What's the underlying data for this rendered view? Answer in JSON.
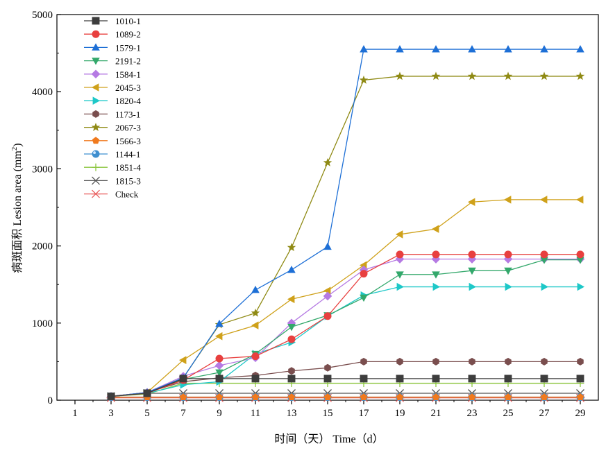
{
  "chart_data": {
    "type": "line",
    "xlabel": "时间（天） Time（d）",
    "ylabel": "病斑面积 Lesion area (mm2)",
    "ylabel_main": "病斑面积 Lesion area (mm",
    "ylabel_sup": "2",
    "ylabel_close": ")",
    "xlim": [
      0,
      30
    ],
    "ylim": [
      0,
      5000
    ],
    "xticks": [
      1,
      3,
      5,
      7,
      9,
      11,
      13,
      15,
      17,
      19,
      21,
      23,
      25,
      27,
      29
    ],
    "yticks": [
      0,
      1000,
      2000,
      3000,
      4000,
      5000
    ],
    "grid": false,
    "legend_position": "top-left",
    "x": [
      3,
      5,
      7,
      9,
      11,
      13,
      15,
      17,
      19,
      21,
      23,
      25,
      27,
      29
    ],
    "series": [
      {
        "name": "1010-1",
        "color": "#3d3d3d",
        "marker": "square",
        "values": [
          50,
          90,
          280,
          280,
          280,
          280,
          280,
          280,
          280,
          280,
          280,
          280,
          280,
          280
        ]
      },
      {
        "name": "1089-2",
        "color": "#e8403f",
        "marker": "circle",
        "values": [
          50,
          90,
          260,
          540,
          570,
          790,
          1090,
          1640,
          1890,
          1890,
          1890,
          1890,
          1890,
          1890
        ]
      },
      {
        "name": "1579-1",
        "color": "#1d6fd6",
        "marker": "triangle-up",
        "values": [
          50,
          100,
          290,
          990,
          1430,
          1690,
          1990,
          4550,
          4550,
          4550,
          4550,
          4550,
          4550,
          4550
        ]
      },
      {
        "name": "2191-2",
        "color": "#33a86b",
        "marker": "triangle-down",
        "values": [
          50,
          90,
          270,
          360,
          600,
          950,
          1100,
          1330,
          1630,
          1630,
          1680,
          1680,
          1820,
          1820
        ]
      },
      {
        "name": "1584-1",
        "color": "#b57ae3",
        "marker": "diamond",
        "values": [
          50,
          100,
          310,
          450,
          550,
          1000,
          1350,
          1690,
          1830,
          1830,
          1830,
          1830,
          1830,
          1830
        ]
      },
      {
        "name": "2045-3",
        "color": "#cfa11a",
        "marker": "triangle-left",
        "values": [
          50,
          100,
          520,
          830,
          970,
          1310,
          1420,
          1750,
          2150,
          2220,
          2570,
          2600,
          2600,
          2600
        ]
      },
      {
        "name": "1820-4",
        "color": "#1ec8c8",
        "marker": "triangle-right",
        "values": [
          50,
          90,
          200,
          240,
          600,
          750,
          1090,
          1360,
          1470,
          1470,
          1470,
          1470,
          1470,
          1470
        ]
      },
      {
        "name": "1173-1",
        "color": "#7a4e4e",
        "marker": "hexagon",
        "values": [
          50,
          100,
          240,
          290,
          320,
          380,
          420,
          500,
          500,
          500,
          500,
          500,
          500,
          500
        ]
      },
      {
        "name": "2067-3",
        "color": "#8f8a14",
        "marker": "star",
        "values": [
          50,
          100,
          290,
          980,
          1130,
          1980,
          3080,
          4150,
          4200,
          4200,
          4200,
          4200,
          4200,
          4200
        ]
      },
      {
        "name": "1566-3",
        "color": "#f07a1e",
        "marker": "pentagon",
        "values": [
          40,
          40,
          40,
          40,
          40,
          40,
          40,
          40,
          40,
          40,
          40,
          40,
          40,
          40
        ]
      },
      {
        "name": "1144-1",
        "color": "#3f8fcf",
        "marker": "sphere",
        "values": [
          40,
          40,
          40,
          40,
          40,
          40,
          40,
          40,
          40,
          40,
          40,
          40,
          40,
          40
        ]
      },
      {
        "name": "1851-4",
        "color": "#8cc63f",
        "marker": "plus",
        "values": [
          50,
          80,
          220,
          220,
          220,
          220,
          220,
          220,
          220,
          220,
          220,
          220,
          220,
          220
        ]
      },
      {
        "name": "1815-3",
        "color": "#555555",
        "marker": "x",
        "values": [
          50,
          90,
          90,
          90,
          90,
          90,
          90,
          90,
          90,
          90,
          90,
          90,
          90,
          90
        ]
      },
      {
        "name": "Check",
        "color": "#e85a5a",
        "marker": "asterisk",
        "values": [
          30,
          30,
          30,
          30,
          30,
          30,
          30,
          30,
          30,
          30,
          30,
          30,
          30,
          30
        ]
      }
    ]
  }
}
